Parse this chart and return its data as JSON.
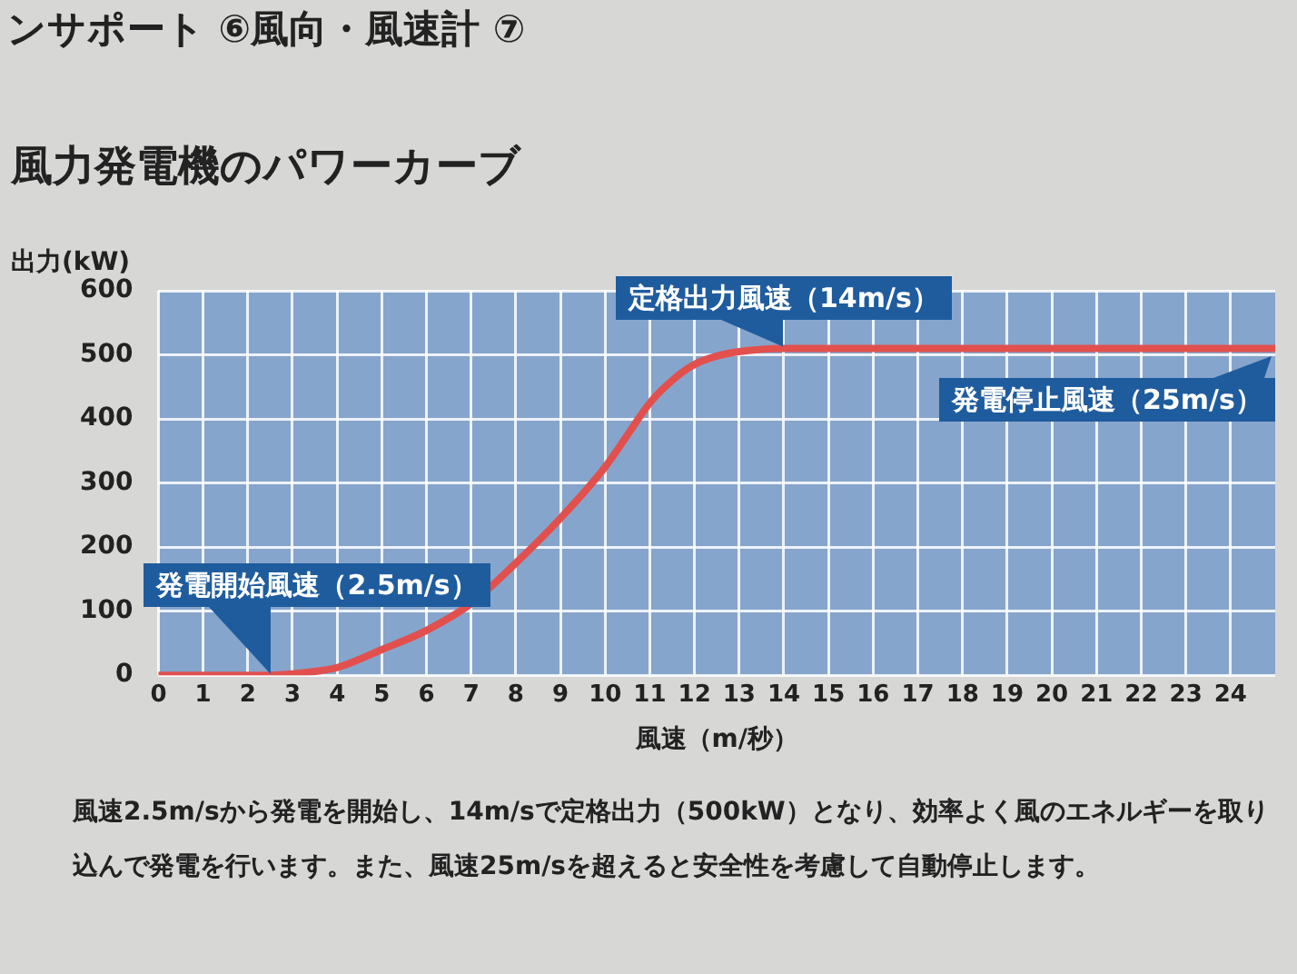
{
  "chart_data": {
    "type": "line",
    "title": "風力発電機のパワーカーブ",
    "ylabel": "出力(kW)",
    "xlabel": "風速（m/秒）",
    "annotations": [
      "ンサポート ⑥風向・風速計 ⑦",
      {
        "text": "発電開始風速（2.5m/s）",
        "x": 2.5,
        "y": 0
      },
      {
        "text": "定格出力風速（14m/s）",
        "x": 14,
        "y": 510
      },
      {
        "text": "発電停止風速（25m/s）",
        "x": 25,
        "y": 510
      },
      "風速2.5m/sから発電を開始し、14m/sで定格出力（500kW）となり、効率よく風のエネルギーを取り込んで発電を行います。また、風速25m/sを超えると安全性を考慮して自動停止します。"
    ],
    "series": [
      {
        "color": "#e2504e",
        "x": [
          0,
          2.5,
          3,
          3.5,
          4,
          5,
          6,
          7,
          8,
          9,
          10,
          10.5,
          11,
          11.5,
          12,
          12.5,
          13,
          14,
          20,
          25
        ],
        "values": [
          0,
          0,
          2,
          6,
          12,
          40,
          70,
          112,
          175,
          245,
          325,
          375,
          425,
          460,
          485,
          498,
          505,
          510,
          510,
          510
        ]
      }
    ],
    "xlim": [
      0,
      25
    ],
    "xticks": [
      0,
      1,
      2,
      3,
      4,
      5,
      6,
      7,
      8,
      9,
      10,
      11,
      12,
      13,
      14,
      15,
      16,
      17,
      18,
      19,
      20,
      21,
      22,
      23,
      24
    ],
    "ylim": [
      0,
      600
    ],
    "yticks": [
      0,
      100,
      200,
      300,
      400,
      500,
      600
    ],
    "grid": true,
    "legend": false,
    "marker": "none"
  }
}
